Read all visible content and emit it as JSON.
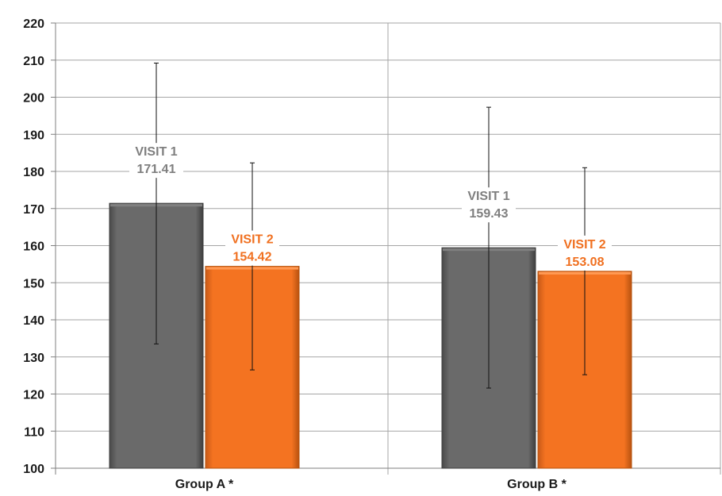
{
  "chart_data": {
    "type": "bar",
    "categories": [
      "Group A *",
      "Group B *"
    ],
    "series": [
      {
        "name": "VISIT 1",
        "color": "#646464",
        "values": [
          171.41,
          159.43
        ],
        "error_high": [
          209.2,
          197.3
        ],
        "error_low": [
          133.5,
          121.6
        ],
        "labels": [
          "171.41",
          "159.43"
        ]
      },
      {
        "name": "VISIT 2",
        "color": "#F07020",
        "values": [
          154.42,
          153.08
        ],
        "error_high": [
          182.3,
          181.0
        ],
        "error_low": [
          126.5,
          125.2
        ],
        "labels": [
          "154.42",
          "153.08"
        ]
      }
    ],
    "ylim": [
      100,
      220
    ],
    "yticks": [
      100,
      110,
      120,
      130,
      140,
      150,
      160,
      170,
      180,
      190,
      200,
      210,
      220
    ],
    "grid": true,
    "label_colors": [
      "#7F7F7F",
      "#F07020"
    ]
  }
}
